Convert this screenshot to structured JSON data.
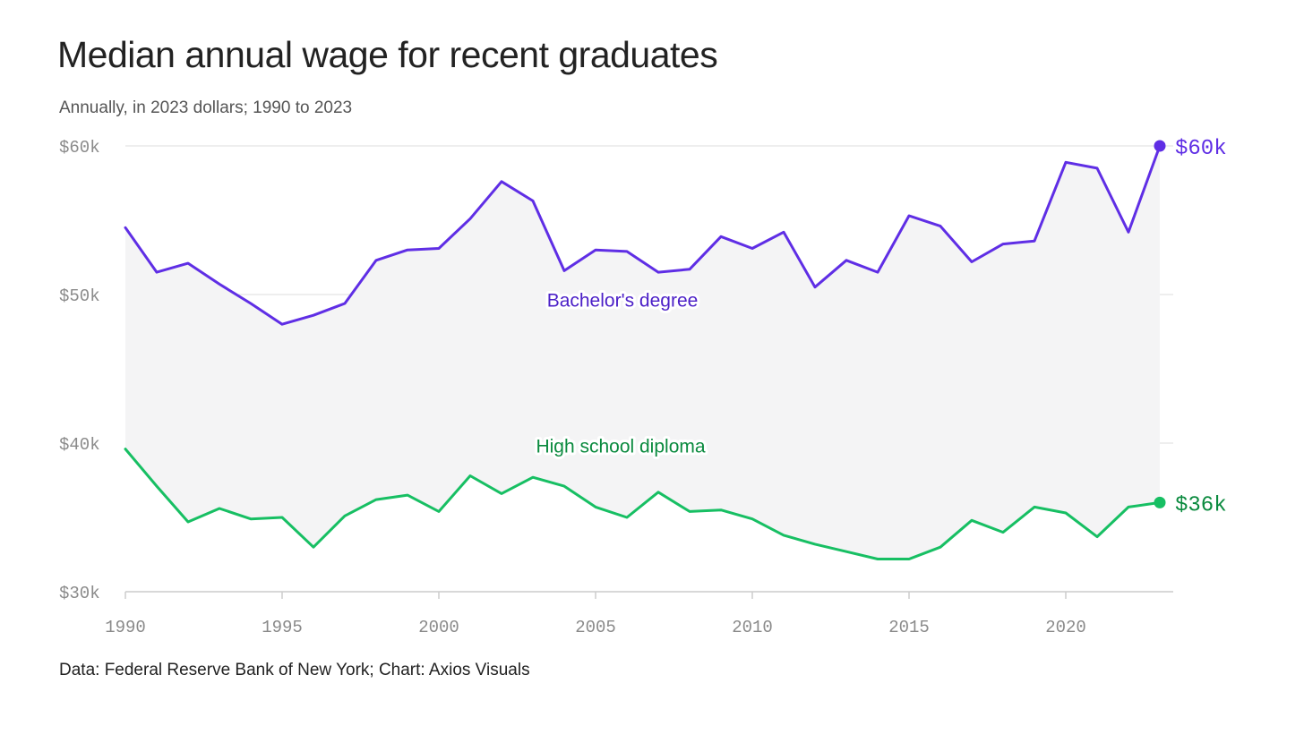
{
  "header": {
    "title": "Median annual wage for recent graduates",
    "subtitle": "Annually, in 2023 dollars; 1990 to 2023"
  },
  "footer": {
    "source": "Data: Federal Reserve Bank of New York; Chart: Axios Visuals"
  },
  "colors": {
    "bachelors": "#5f2ee5",
    "bachelors_label": "#4b1fc7",
    "highschool": "#17bf63",
    "highschool_label": "#0a8a3e",
    "fill": "#f4f4f5",
    "grid": "#dddddd",
    "axis": "#cccccc"
  },
  "chart_data": {
    "type": "line",
    "title": "Median annual wage for recent graduates",
    "subtitle": "Annually, in 2023 dollars; 1990 to 2023",
    "xlim": [
      1990,
      2023
    ],
    "ylim": [
      30000,
      60000
    ],
    "y_ticks": [
      {
        "value": 30000,
        "label": "$30k"
      },
      {
        "value": 40000,
        "label": "$40k"
      },
      {
        "value": 50000,
        "label": "$50k"
      },
      {
        "value": 60000,
        "label": "$60k"
      }
    ],
    "x_ticks": [
      {
        "value": 1990,
        "label": "1990"
      },
      {
        "value": 1995,
        "label": "1995"
      },
      {
        "value": 2000,
        "label": "2000"
      },
      {
        "value": 2005,
        "label": "2005"
      },
      {
        "value": 2010,
        "label": "2010"
      },
      {
        "value": 2015,
        "label": "2015"
      },
      {
        "value": 2020,
        "label": "2020"
      }
    ],
    "grid": true,
    "shade_between_series": true,
    "x": [
      1990,
      1991,
      1992,
      1993,
      1994,
      1995,
      1996,
      1997,
      1998,
      1999,
      2000,
      2001,
      2002,
      2003,
      2004,
      2005,
      2006,
      2007,
      2008,
      2009,
      2010,
      2011,
      2012,
      2013,
      2014,
      2015,
      2016,
      2017,
      2018,
      2019,
      2020,
      2021,
      2022,
      2023
    ],
    "series": [
      {
        "name": "Bachelor's degree",
        "end_label": "$60k",
        "values": [
          54500,
          51500,
          52100,
          50700,
          49400,
          48000,
          48600,
          49400,
          52300,
          53000,
          53100,
          55100,
          57600,
          56300,
          51600,
          53000,
          52900,
          51500,
          51700,
          53900,
          53100,
          54200,
          50500,
          52300,
          51500,
          55300,
          54600,
          52200,
          53400,
          53600,
          58900,
          58500,
          54200,
          60000
        ]
      },
      {
        "name": "High school diploma",
        "end_label": "$36k",
        "values": [
          39600,
          37100,
          34700,
          35600,
          34900,
          35000,
          33000,
          35100,
          36200,
          36500,
          35400,
          37800,
          36600,
          37700,
          37100,
          35700,
          35000,
          36700,
          35400,
          35500,
          34900,
          33800,
          33200,
          32700,
          32200,
          32200,
          33000,
          34800,
          34000,
          35700,
          35300,
          33700,
          35700,
          36000
        ]
      }
    ]
  }
}
